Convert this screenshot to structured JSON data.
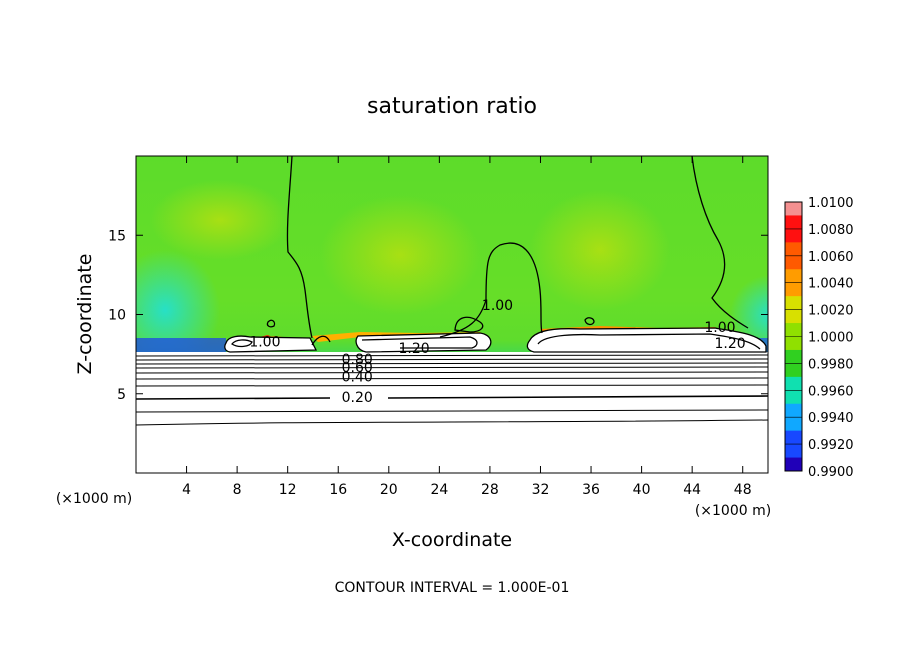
{
  "chart_data": {
    "type": "heatmap",
    "title": "saturation ratio",
    "xlabel": "X-coordinate",
    "ylabel": "Z-coordinate",
    "x_unit": "(×1000 m)",
    "z_unit": "(×1000 m)",
    "xlim": [
      0,
      50
    ],
    "ylim": [
      0,
      20
    ],
    "x_ticks": [
      4,
      8,
      12,
      16,
      20,
      24,
      28,
      32,
      36,
      40,
      44,
      48
    ],
    "y_ticks": [
      5,
      10,
      15
    ],
    "colorbar": {
      "levels": [
        "1.0100",
        "1.0080",
        "1.0060",
        "1.0040",
        "1.0020",
        "1.0000",
        "0.9980",
        "0.9960",
        "0.9940",
        "0.9920",
        "0.9900"
      ],
      "colors": [
        "#f49090",
        "#ff1010",
        "#ff5a00",
        "#ff9c00",
        "#d8e000",
        "#90e000",
        "#30d020",
        "#10e0b0",
        "#10a8ff",
        "#1848ff",
        "#2000b8",
        "#6010b0"
      ]
    },
    "contour_labels": [
      {
        "text": "1.00",
        "x": 10.2,
        "z": 8.3
      },
      {
        "text": "1.20",
        "x": 22.0,
        "z": 7.9
      },
      {
        "text": "0.80",
        "x": 17.5,
        "z": 7.2
      },
      {
        "text": "0.60",
        "x": 17.5,
        "z": 6.7
      },
      {
        "text": "0.40",
        "x": 17.5,
        "z": 6.1
      },
      {
        "text": "0.20",
        "x": 17.5,
        "z": 4.8
      },
      {
        "text": "1.00",
        "x": 28.6,
        "z": 10.6
      },
      {
        "text": "1.00",
        "x": 46.2,
        "z": 9.2
      },
      {
        "text": "1.20",
        "x": 47.0,
        "z": 8.2
      }
    ],
    "contour_interval_text": "CONTOUR INTERVAL = 1.000E-01"
  }
}
